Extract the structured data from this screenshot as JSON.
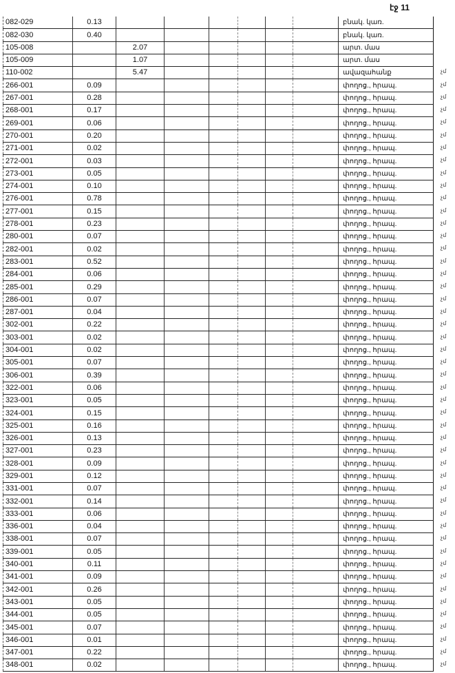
{
  "page_label": "էջ 11",
  "margin_mark": "չմ",
  "rows": [
    {
      "id": "082-029",
      "area_a": "0.13",
      "area_b": "",
      "use": "բնակ. կառ."
    },
    {
      "id": "082-030",
      "area_a": "0.40",
      "area_b": "",
      "use": "բնակ. կառ."
    },
    {
      "id": "105-008",
      "area_a": "",
      "area_b": "2.07",
      "use": "արտ. մաս"
    },
    {
      "id": "105-009",
      "area_a": "",
      "area_b": "1.07",
      "use": "արտ. մաս"
    },
    {
      "id": "110-002",
      "area_a": "",
      "area_b": "5.47",
      "use": "ավազահանք"
    },
    {
      "id": "266-001",
      "area_a": "0.09",
      "area_b": "",
      "use": "փողոց., հրապ."
    },
    {
      "id": "267-001",
      "area_a": "0.28",
      "area_b": "",
      "use": "փողոց., հրապ."
    },
    {
      "id": "268-001",
      "area_a": "0.17",
      "area_b": "",
      "use": "փողոց., հրապ."
    },
    {
      "id": "269-001",
      "area_a": "0.06",
      "area_b": "",
      "use": "փողոց., հրապ."
    },
    {
      "id": "270-001",
      "area_a": "0.20",
      "area_b": "",
      "use": "փողոց., հրապ."
    },
    {
      "id": "271-001",
      "area_a": "0.02",
      "area_b": "",
      "use": "փողոց., հրապ."
    },
    {
      "id": "272-001",
      "area_a": "0.03",
      "area_b": "",
      "use": "փողոց., հրապ."
    },
    {
      "id": "273-001",
      "area_a": "0.05",
      "area_b": "",
      "use": "փողոց., հրապ."
    },
    {
      "id": "274-001",
      "area_a": "0.10",
      "area_b": "",
      "use": "փողոց., հրապ."
    },
    {
      "id": "276-001",
      "area_a": "0.78",
      "area_b": "",
      "use": "փողոց., հրապ."
    },
    {
      "id": "277-001",
      "area_a": "0.15",
      "area_b": "",
      "use": "փողոց., հրապ."
    },
    {
      "id": "278-001",
      "area_a": "0.23",
      "area_b": "",
      "use": "փողոց., հրապ."
    },
    {
      "id": "280-001",
      "area_a": "0.07",
      "area_b": "",
      "use": "փողոց., հրապ."
    },
    {
      "id": "282-001",
      "area_a": "0.02",
      "area_b": "",
      "use": "փողոց., հրապ."
    },
    {
      "id": "283-001",
      "area_a": "0.52",
      "area_b": "",
      "use": "փողոց., հրապ."
    },
    {
      "id": "284-001",
      "area_a": "0.06",
      "area_b": "",
      "use": "փողոց., հրապ."
    },
    {
      "id": "285-001",
      "area_a": "0.29",
      "area_b": "",
      "use": "փողոց., հրապ."
    },
    {
      "id": "286-001",
      "area_a": "0.07",
      "area_b": "",
      "use": "փողոց., հրապ."
    },
    {
      "id": "287-001",
      "area_a": "0.04",
      "area_b": "",
      "use": "փողոց., հրապ."
    },
    {
      "id": "302-001",
      "area_a": "0.22",
      "area_b": "",
      "use": "փողոց., հրապ."
    },
    {
      "id": "303-001",
      "area_a": "0.02",
      "area_b": "",
      "use": "փողոց., հրապ."
    },
    {
      "id": "304-001",
      "area_a": "0.02",
      "area_b": "",
      "use": "փողոց., հրապ."
    },
    {
      "id": "305-001",
      "area_a": "0.07",
      "area_b": "",
      "use": "փողոց., հրապ."
    },
    {
      "id": "306-001",
      "area_a": "0.39",
      "area_b": "",
      "use": "փողոց., հրապ."
    },
    {
      "id": "322-001",
      "area_a": "0.06",
      "area_b": "",
      "use": "փողոց., հրապ."
    },
    {
      "id": "323-001",
      "area_a": "0.05",
      "area_b": "",
      "use": "փողոց., հրապ."
    },
    {
      "id": "324-001",
      "area_a": "0.15",
      "area_b": "",
      "use": "փողոց., հրապ."
    },
    {
      "id": "325-001",
      "area_a": "0.16",
      "area_b": "",
      "use": "փողոց., հրապ."
    },
    {
      "id": "326-001",
      "area_a": "0.13",
      "area_b": "",
      "use": "փողոց., հրապ."
    },
    {
      "id": "327-001",
      "area_a": "0.23",
      "area_b": "",
      "use": "փողոց., հրապ."
    },
    {
      "id": "328-001",
      "area_a": "0.09",
      "area_b": "",
      "use": "փողոց., հրապ."
    },
    {
      "id": "329-001",
      "area_a": "0.12",
      "area_b": "",
      "use": "փողոց., հրապ."
    },
    {
      "id": "331-001",
      "area_a": "0.07",
      "area_b": "",
      "use": "փողոց., հրապ."
    },
    {
      "id": "332-001",
      "area_a": "0.14",
      "area_b": "",
      "use": "փողոց., հրապ."
    },
    {
      "id": "333-001",
      "area_a": "0.06",
      "area_b": "",
      "use": "փողոց., հրապ."
    },
    {
      "id": "336-001",
      "area_a": "0.04",
      "area_b": "",
      "use": "փողոց., հրապ."
    },
    {
      "id": "338-001",
      "area_a": "0.07",
      "area_b": "",
      "use": "փողոց., հրապ."
    },
    {
      "id": "339-001",
      "area_a": "0.05",
      "area_b": "",
      "use": "փողոց., հրապ."
    },
    {
      "id": "340-001",
      "area_a": "0.11",
      "area_b": "",
      "use": "փողոց., հրապ."
    },
    {
      "id": "341-001",
      "area_a": "0.09",
      "area_b": "",
      "use": "փողոց., հրապ."
    },
    {
      "id": "342-001",
      "area_a": "0.26",
      "area_b": "",
      "use": "փողոց., հրապ."
    },
    {
      "id": "343-001",
      "area_a": "0.05",
      "area_b": "",
      "use": "փողոց., հրապ."
    },
    {
      "id": "344-001",
      "area_a": "0.05",
      "area_b": "",
      "use": "փողոց., հրապ."
    },
    {
      "id": "345-001",
      "area_a": "0.07",
      "area_b": "",
      "use": "փողոց., հրապ."
    },
    {
      "id": "346-001",
      "area_a": "0.01",
      "area_b": "",
      "use": "փողոց., հրապ."
    },
    {
      "id": "347-001",
      "area_a": "0.22",
      "area_b": "",
      "use": "փողոց., հրապ."
    },
    {
      "id": "348-001",
      "area_a": "0.02",
      "area_b": "",
      "use": "փողոց., հրապ."
    }
  ]
}
